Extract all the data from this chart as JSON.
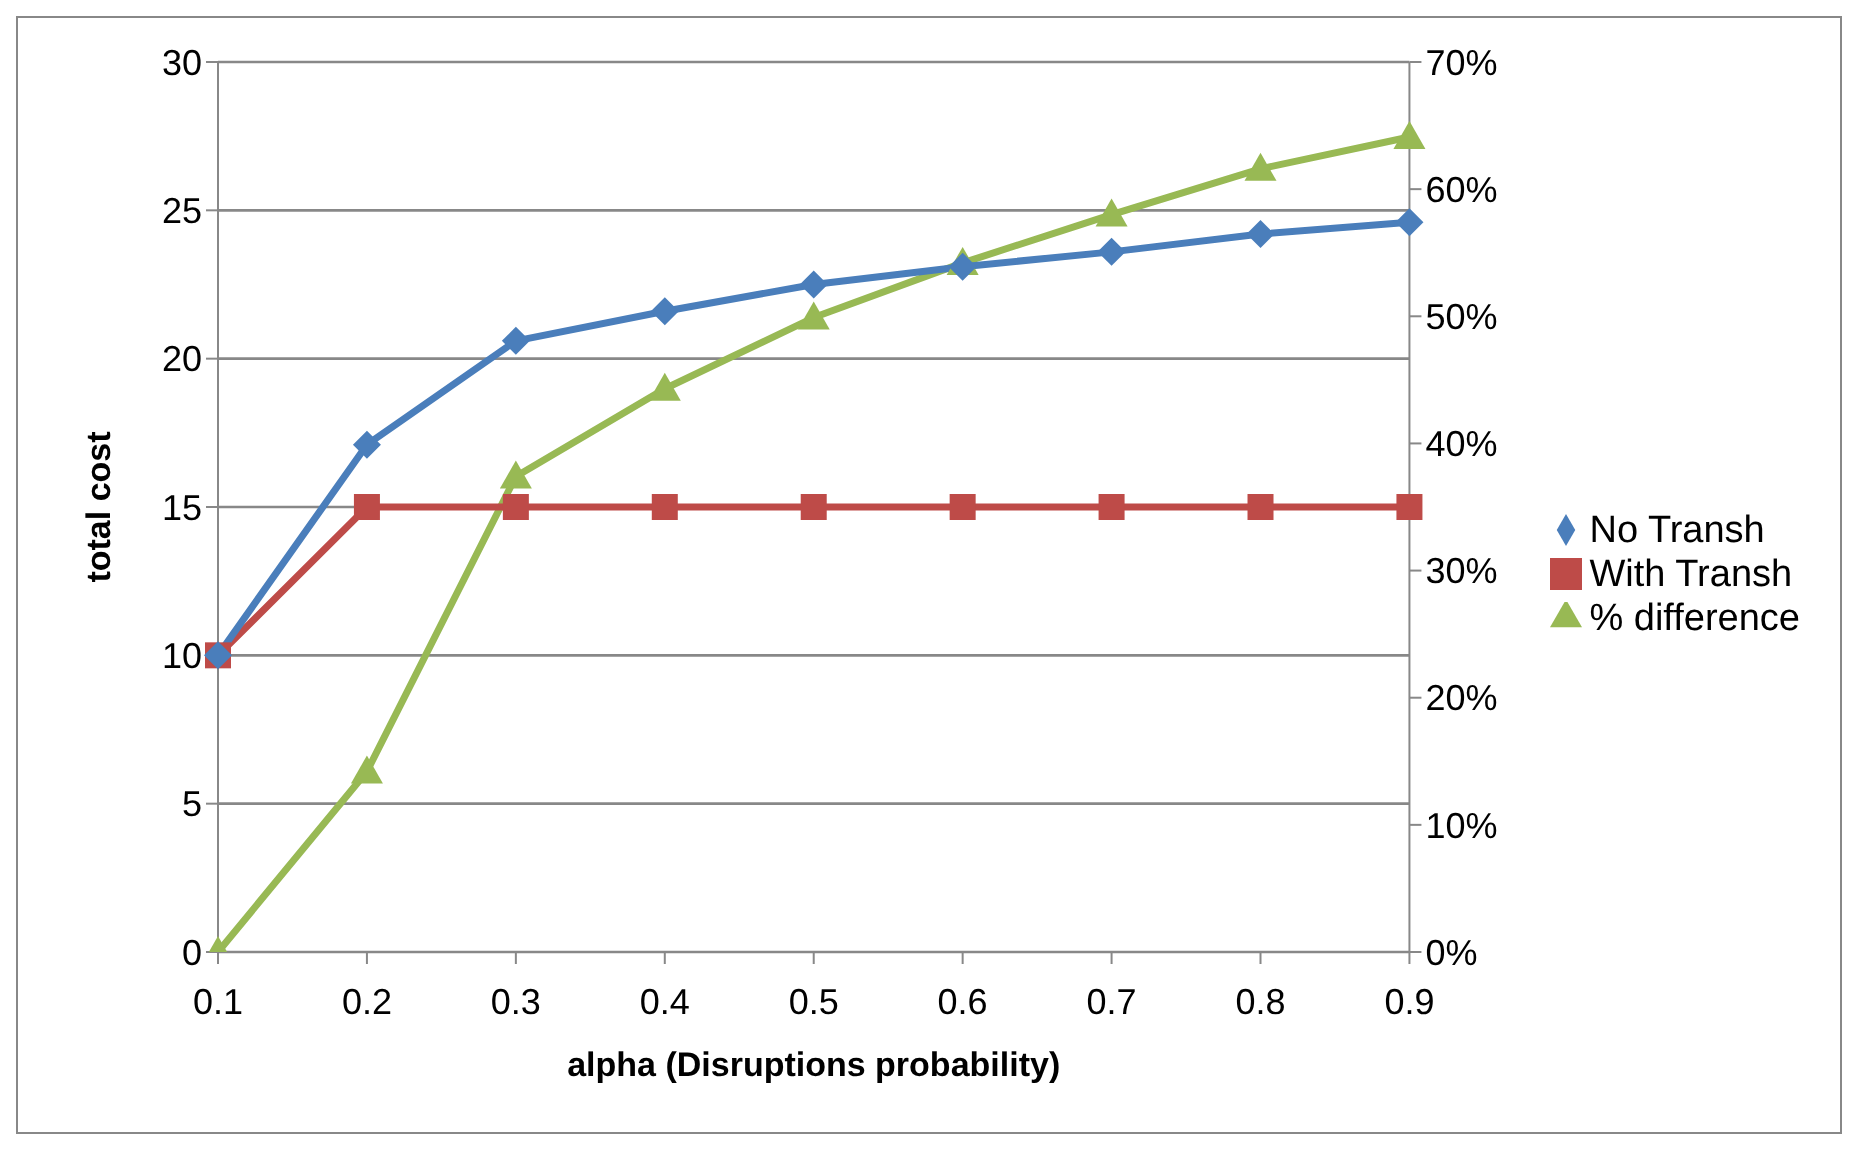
{
  "chart_data": {
    "type": "line",
    "xlabel": "alpha (Disruptions probability)",
    "ylabel": "total cost",
    "categories": [
      "0.1",
      "0.2",
      "0.3",
      "0.4",
      "0.5",
      "0.6",
      "0.7",
      "0.8",
      "0.9"
    ],
    "series": [
      {
        "name": "No Transh",
        "color": "#4a7ebb",
        "marker": "diamond",
        "values": [
          10,
          17.1,
          20.6,
          21.6,
          22.5,
          23.1,
          23.6,
          24.2,
          24.6
        ]
      },
      {
        "name": "With Transh",
        "color": "#be4b48",
        "marker": "square",
        "values": [
          10,
          15,
          15,
          15,
          15,
          15,
          15,
          15,
          15
        ]
      },
      {
        "name": "% difference",
        "color": "#98b954",
        "marker": "triangle",
        "axis": "y2",
        "values": [
          0,
          14.2,
          37.4,
          44.3,
          49.9,
          54.2,
          58.0,
          61.6,
          64.1
        ]
      }
    ],
    "ylim": [
      0,
      30
    ],
    "yticks": [
      0,
      5,
      10,
      15,
      20,
      25,
      30
    ],
    "y2lim": [
      0,
      70
    ],
    "y2ticks": [
      {
        "value": 0,
        "label": "0%"
      },
      {
        "value": 10,
        "label": "10%"
      },
      {
        "value": 20,
        "label": "20%"
      },
      {
        "value": 30,
        "label": "30%"
      },
      {
        "value": 40,
        "label": "40%"
      },
      {
        "value": 50,
        "label": "50%"
      },
      {
        "value": 60,
        "label": "60%"
      },
      {
        "value": 70,
        "label": "70%"
      }
    ],
    "grid": "y",
    "legend": "right"
  }
}
